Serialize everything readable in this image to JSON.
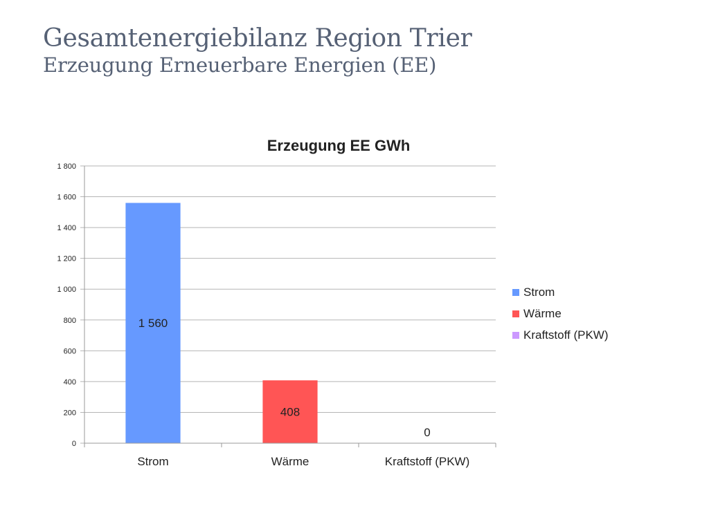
{
  "slide": {
    "title": "Gesamtenergiebilanz Region Trier",
    "subtitle": "Erzeugung Erneuerbare Energien (EE)"
  },
  "chart_data": {
    "type": "bar",
    "title": "Erzeugung EE GWh",
    "categories": [
      "Strom",
      "Wärme",
      "Kraftstoff (PKW)"
    ],
    "values": [
      1560,
      408,
      0
    ],
    "data_labels": [
      "1 560",
      "408",
      "0"
    ],
    "colors": [
      "#6699ff",
      "#ff5555",
      "#cc99ff"
    ],
    "ylim": [
      0,
      1800
    ],
    "yticks": [
      0,
      200,
      400,
      600,
      800,
      1000,
      1200,
      1400,
      1600,
      1800
    ],
    "ytick_labels": [
      "0",
      "200",
      "400",
      "600",
      "800",
      "1 000",
      "1 200",
      "1 400",
      "1 600",
      "1 800"
    ],
    "grid": true,
    "legend": {
      "position": "right",
      "entries": [
        "Strom",
        "Wärme",
        "Kraftstoff (PKW)"
      ]
    }
  }
}
